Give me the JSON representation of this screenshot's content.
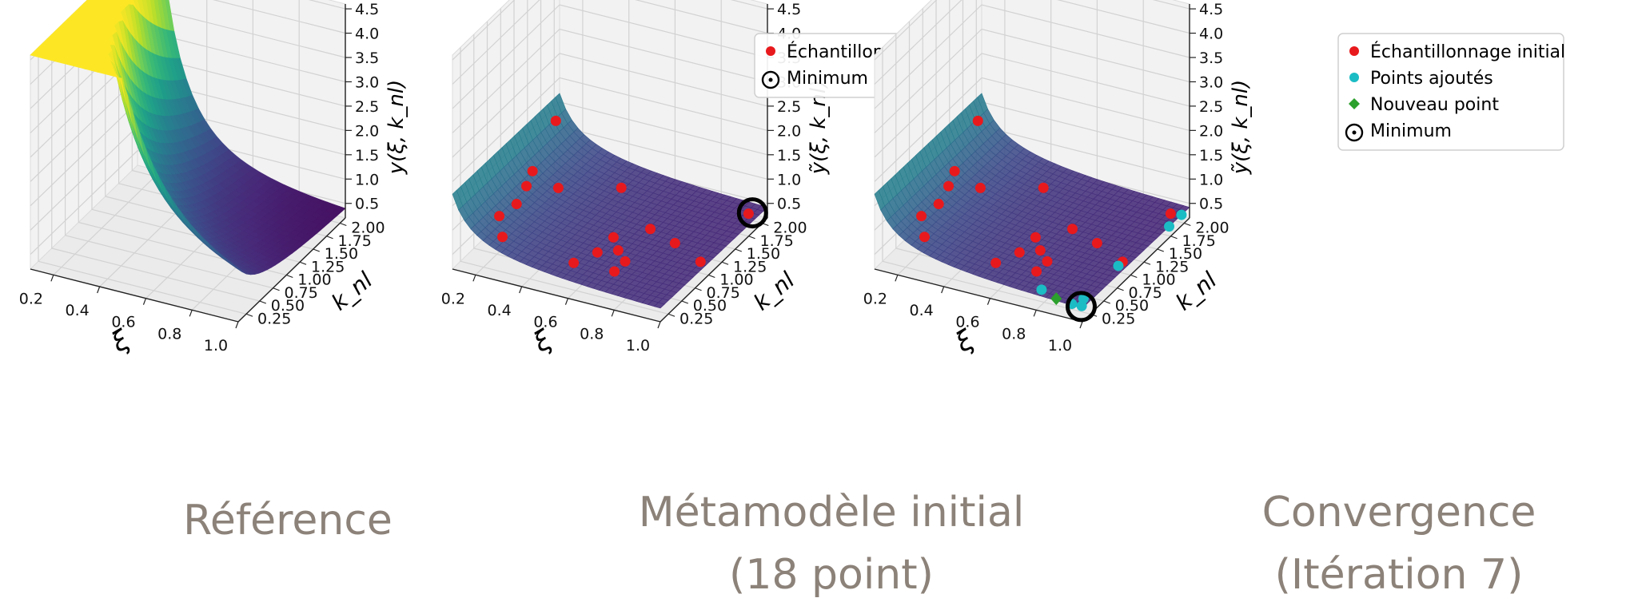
{
  "colors": {
    "sample": "#e8191c",
    "added": "#1bbcc4",
    "new": "#2ca02c",
    "minimum": "#000000",
    "caption": "#8c8279"
  },
  "chart_data": [
    {
      "type": "surface",
      "caption": "Référence",
      "xlabel": "ξ",
      "ylabel": "k_nl",
      "zlabel": "y(ξ, k_nl)",
      "xlim": [
        0.1,
        1.0
      ],
      "ylim": [
        0.1,
        2.1
      ],
      "zlim": [
        0.2,
        4.6
      ],
      "x_ticks": [
        "0.2",
        "0.4",
        "0.6",
        "0.8",
        "1.0"
      ],
      "y_ticks": [
        "0.25",
        "0.50",
        "0.75",
        "1.00",
        "1.25",
        "1.50",
        "1.75",
        "2.00"
      ],
      "z_ticks": [
        "0.5",
        "1.0",
        "1.5",
        "2.0",
        "2.5",
        "3.0",
        "3.5",
        "4.0",
        "4.5"
      ],
      "legend": [],
      "points": {
        "initial": [],
        "added": [],
        "new": [],
        "minimum": []
      }
    },
    {
      "type": "surface",
      "caption": "Métamodèle initial",
      "caption2": "(18 point)",
      "xlabel": "ξ",
      "ylabel": "k_nl",
      "zlabel": "ỹ(ξ, k_nl)",
      "xlim": [
        0.1,
        1.0
      ],
      "ylim": [
        0.1,
        2.1
      ],
      "zlim": [
        0.2,
        4.6
      ],
      "x_ticks": [
        "0.2",
        "0.4",
        "0.6",
        "0.8",
        "1.0"
      ],
      "y_ticks": [
        "0.25",
        "0.50",
        "0.75",
        "1.00",
        "1.25",
        "1.50",
        "1.75",
        "2.00"
      ],
      "z_ticks": [
        "0.5",
        "1.0",
        "1.5",
        "2.0",
        "2.5",
        "3.0",
        "3.5",
        "4.0",
        "4.5"
      ],
      "legend": [
        {
          "symbol": "dot",
          "series": "initial",
          "label": "Échantillonnage initial"
        },
        {
          "symbol": "ring",
          "series": "minimum",
          "label": "Minimum"
        }
      ],
      "points": {
        "initial": [
          [
            0.13,
            1.9
          ],
          [
            0.28,
            1.3
          ],
          [
            0.46,
            1.7
          ],
          [
            0.82,
            1.15
          ],
          [
            0.18,
            1.25
          ],
          [
            0.2,
            1.05
          ],
          [
            0.69,
            1.25
          ],
          [
            0.6,
            0.95
          ],
          [
            0.66,
            0.78
          ],
          [
            0.22,
            0.78
          ],
          [
            0.6,
            0.65
          ],
          [
            0.72,
            0.45
          ],
          [
            0.21,
            0.5
          ],
          [
            0.27,
            0.3
          ],
          [
            0.72,
            0.65
          ],
          [
            0.56,
            0.38
          ],
          [
            0.96,
            1.92
          ],
          [
            0.97,
            0.98
          ]
        ],
        "added": [],
        "new": [],
        "minimum": [
          [
            0.97,
            1.95
          ]
        ]
      }
    },
    {
      "type": "surface",
      "caption": "Convergence",
      "caption2": "(Itération 7)",
      "xlabel": "ξ",
      "ylabel": "k_nl",
      "zlabel": "ỹ(ξ, k_nl)",
      "xlim": [
        0.1,
        1.0
      ],
      "ylim": [
        0.1,
        2.1
      ],
      "zlim": [
        0.2,
        4.6
      ],
      "x_ticks": [
        "0.2",
        "0.4",
        "0.6",
        "0.8",
        "1.0"
      ],
      "y_ticks": [
        "0.25",
        "0.50",
        "0.75",
        "1.00",
        "1.25",
        "1.50",
        "1.75",
        "2.00"
      ],
      "z_ticks": [
        "0.5",
        "1.0",
        "1.5",
        "2.0",
        "2.5",
        "3.0",
        "3.5",
        "4.0",
        "4.5"
      ],
      "legend": [
        {
          "symbol": "dot",
          "series": "initial",
          "label": "Échantillonnage initial"
        },
        {
          "symbol": "dot",
          "series": "added",
          "label": "Points ajoutés"
        },
        {
          "symbol": "diamond",
          "series": "new",
          "label": "Nouveau point"
        },
        {
          "symbol": "ring",
          "series": "minimum",
          "label": "Minimum"
        }
      ],
      "points": {
        "initial": [
          [
            0.13,
            1.9
          ],
          [
            0.28,
            1.3
          ],
          [
            0.46,
            1.7
          ],
          [
            0.82,
            1.15
          ],
          [
            0.18,
            1.25
          ],
          [
            0.2,
            1.05
          ],
          [
            0.69,
            1.25
          ],
          [
            0.6,
            0.95
          ],
          [
            0.66,
            0.78
          ],
          [
            0.22,
            0.78
          ],
          [
            0.6,
            0.65
          ],
          [
            0.72,
            0.45
          ],
          [
            0.21,
            0.5
          ],
          [
            0.27,
            0.3
          ],
          [
            0.72,
            0.65
          ],
          [
            0.56,
            0.38
          ],
          [
            0.96,
            1.92
          ],
          [
            0.97,
            0.98
          ]
        ],
        "added": [
          [
            1.0,
            1.72
          ],
          [
            1.0,
            1.95
          ],
          [
            0.97,
            0.9
          ],
          [
            0.8,
            0.2
          ],
          [
            0.97,
            0.25
          ],
          [
            0.95,
            0.12
          ],
          [
            0.99,
            0.13
          ]
        ],
        "new": [
          [
            0.88,
            0.13
          ]
        ],
        "minimum": [
          [
            0.99,
            0.12
          ]
        ]
      }
    }
  ]
}
